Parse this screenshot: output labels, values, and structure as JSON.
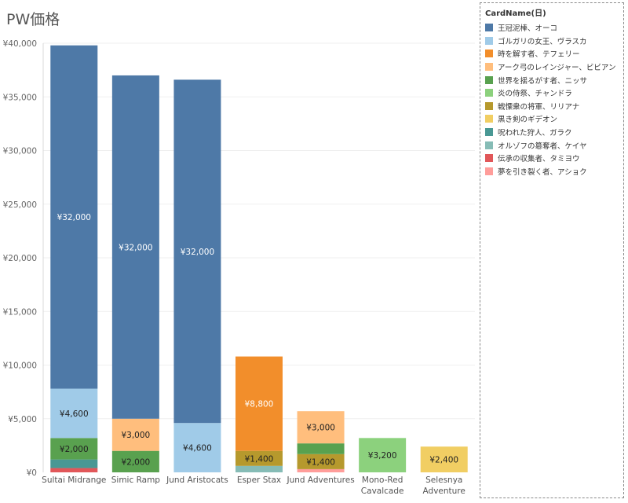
{
  "title": "PW価格",
  "legend": {
    "title": "CardName(日)",
    "items": [
      {
        "label": "王冠泥棒、オーコ",
        "color": "#4e79a7"
      },
      {
        "label": "ゴルガリの女王、ヴラスカ",
        "color": "#a0cbe8"
      },
      {
        "label": "時を解す者、テフェリー",
        "color": "#f28e2b"
      },
      {
        "label": "アーク弓のレインジャー、ビビアン",
        "color": "#ffbe7d"
      },
      {
        "label": "世界を揺るがす者、ニッサ",
        "color": "#59a14f"
      },
      {
        "label": "炎の侍祭、チャンドラ",
        "color": "#8cd17d"
      },
      {
        "label": "戦慄衆の将軍、リリアナ",
        "color": "#b6992d"
      },
      {
        "label": "黒き剣のギデオン",
        "color": "#f1ce63"
      },
      {
        "label": "呪われた狩人、ガラク",
        "color": "#499894"
      },
      {
        "label": "オルゾフの簒奪者、ケイヤ",
        "color": "#86bcb6"
      },
      {
        "label": "伝承の収集者、タミヨウ",
        "color": "#e15759"
      },
      {
        "label": "夢を引き裂く者、アショク",
        "color": "#ff9d9a"
      }
    ]
  },
  "chart_data": {
    "type": "bar",
    "stacked": true,
    "title": "PW価格",
    "xlabel": "",
    "ylabel": "",
    "ylim": [
      0,
      40000
    ],
    "yticks": [
      0,
      5000,
      10000,
      15000,
      20000,
      25000,
      30000,
      35000,
      40000
    ],
    "ytick_labels": [
      "¥0",
      "¥5,000",
      "¥10,000",
      "¥15,000",
      "¥20,000",
      "¥25,000",
      "¥30,000",
      "¥35,000",
      "¥40,000"
    ],
    "grid": true,
    "legend_position": "right",
    "categories": [
      [
        "Sultai Midrange"
      ],
      [
        "Simic Ramp"
      ],
      [
        "Jund Aristocats"
      ],
      [
        "Esper Stax"
      ],
      [
        "Jund Adventures"
      ],
      [
        "Mono-Red",
        "Cavalcade"
      ],
      [
        "Selesnya",
        "Adventure"
      ]
    ],
    "stacks": [
      [
        {
          "card": "伝承の収集者、タミヨウ",
          "value": 400
        },
        {
          "card": "呪われた狩人、ガラク",
          "value": 800
        },
        {
          "card": "世界を揺るがす者、ニッサ",
          "value": 2000,
          "label": "¥2,000"
        },
        {
          "card": "ゴルガリの女王、ヴラスカ",
          "value": 4600,
          "label": "¥4,600"
        },
        {
          "card": "王冠泥棒、オーコ",
          "value": 32000,
          "label": "¥32,000"
        }
      ],
      [
        {
          "card": "世界を揺るがす者、ニッサ",
          "value": 2000,
          "label": "¥2,000"
        },
        {
          "card": "アーク弓のレインジャー、ビビアン",
          "value": 3000,
          "label": "¥3,000"
        },
        {
          "card": "王冠泥棒、オーコ",
          "value": 32000,
          "label": "¥32,000"
        }
      ],
      [
        {
          "card": "ゴルガリの女王、ヴラスカ",
          "value": 4600,
          "label": "¥4,600"
        },
        {
          "card": "王冠泥棒、オーコ",
          "value": 32000,
          "label": "¥32,000"
        }
      ],
      [
        {
          "card": "オルゾフの簒奪者、ケイヤ",
          "value": 600
        },
        {
          "card": "戦慄衆の将軍、リリアナ",
          "value": 1400,
          "label": "¥1,400"
        },
        {
          "card": "時を解す者、テフェリー",
          "value": 8800,
          "label": "¥8,800"
        }
      ],
      [
        {
          "card": "夢を引き裂く者、アショク",
          "value": 300
        },
        {
          "card": "戦慄衆の将軍、リリアナ",
          "value": 1400,
          "label": "¥1,400"
        },
        {
          "card": "世界を揺るがす者、ニッサ",
          "value": 1000
        },
        {
          "card": "アーク弓のレインジャー、ビビアン",
          "value": 3000,
          "label": "¥3,000"
        }
      ],
      [
        {
          "card": "炎の侍祭、チャンドラ",
          "value": 3200,
          "label": "¥3,200"
        }
      ],
      [
        {
          "card": "黒き剣のギデオン",
          "value": 2400,
          "label": "¥2,400"
        }
      ]
    ]
  }
}
